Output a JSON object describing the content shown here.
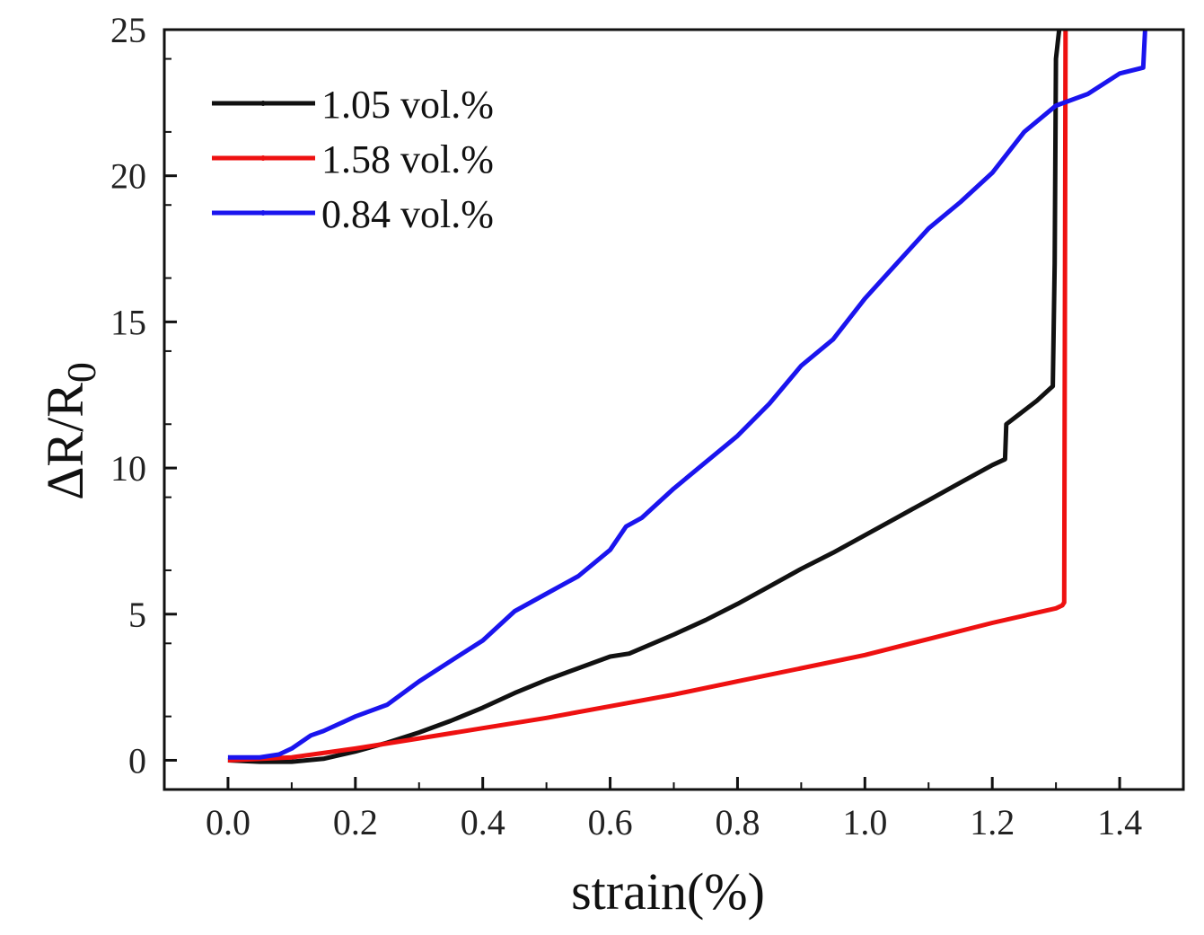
{
  "chart_data": {
    "type": "line",
    "title": "",
    "xlabel": "strain(%)",
    "ylabel": {
      "main": "ΔR/R",
      "subscript": "0"
    },
    "xlim": [
      -0.1,
      1.5
    ],
    "ylim": [
      -1,
      25
    ],
    "xticks": [
      0.0,
      0.2,
      0.4,
      0.6,
      0.8,
      1.0,
      1.2,
      1.4
    ],
    "xtick_labels": [
      "0.0",
      "0.2",
      "0.4",
      "0.6",
      "0.8",
      "1.0",
      "1.2",
      "1.4"
    ],
    "yticks": [
      0,
      5,
      10,
      15,
      20,
      25
    ],
    "ytick_labels": [
      "0",
      "5",
      "10",
      "15",
      "20",
      "25"
    ],
    "grid": false,
    "legend": {
      "position": "top-left"
    },
    "series": [
      {
        "name": "1.05 vol.%",
        "color": "#111111",
        "points": [
          [
            0.0,
            0.0
          ],
          [
            0.05,
            -0.05
          ],
          [
            0.1,
            -0.05
          ],
          [
            0.15,
            0.05
          ],
          [
            0.2,
            0.3
          ],
          [
            0.25,
            0.6
          ],
          [
            0.3,
            0.95
          ],
          [
            0.35,
            1.35
          ],
          [
            0.4,
            1.8
          ],
          [
            0.45,
            2.3
          ],
          [
            0.5,
            2.75
          ],
          [
            0.55,
            3.15
          ],
          [
            0.6,
            3.55
          ],
          [
            0.63,
            3.65
          ],
          [
            0.7,
            4.3
          ],
          [
            0.75,
            4.8
          ],
          [
            0.8,
            5.35
          ],
          [
            0.85,
            5.95
          ],
          [
            0.9,
            6.55
          ],
          [
            0.95,
            7.1
          ],
          [
            1.0,
            7.7
          ],
          [
            1.05,
            8.3
          ],
          [
            1.1,
            8.9
          ],
          [
            1.15,
            9.5
          ],
          [
            1.2,
            10.1
          ],
          [
            1.22,
            10.3
          ],
          [
            1.222,
            11.5
          ],
          [
            1.24,
            11.8
          ],
          [
            1.27,
            12.3
          ],
          [
            1.29,
            12.7
          ],
          [
            1.295,
            12.8
          ],
          [
            1.298,
            17.0
          ],
          [
            1.3,
            24.0
          ],
          [
            1.305,
            25.0
          ]
        ]
      },
      {
        "name": "1.58 vol.%",
        "color": "#ee1111",
        "points": [
          [
            0.0,
            0.0
          ],
          [
            0.1,
            0.1
          ],
          [
            0.2,
            0.4
          ],
          [
            0.3,
            0.75
          ],
          [
            0.4,
            1.1
          ],
          [
            0.5,
            1.45
          ],
          [
            0.6,
            1.85
          ],
          [
            0.7,
            2.25
          ],
          [
            0.8,
            2.7
          ],
          [
            0.9,
            3.15
          ],
          [
            1.0,
            3.6
          ],
          [
            1.1,
            4.15
          ],
          [
            1.2,
            4.7
          ],
          [
            1.3,
            5.2
          ],
          [
            1.31,
            5.3
          ],
          [
            1.313,
            5.4
          ],
          [
            1.315,
            25.0
          ]
        ]
      },
      {
        "name": "0.84 vol.%",
        "color": "#1a14ee",
        "points": [
          [
            0.0,
            0.1
          ],
          [
            0.05,
            0.1
          ],
          [
            0.08,
            0.2
          ],
          [
            0.1,
            0.4
          ],
          [
            0.13,
            0.85
          ],
          [
            0.15,
            1.0
          ],
          [
            0.2,
            1.5
          ],
          [
            0.25,
            1.9
          ],
          [
            0.3,
            2.7
          ],
          [
            0.35,
            3.4
          ],
          [
            0.4,
            4.1
          ],
          [
            0.45,
            5.1
          ],
          [
            0.5,
            5.7
          ],
          [
            0.55,
            6.3
          ],
          [
            0.6,
            7.2
          ],
          [
            0.625,
            8.0
          ],
          [
            0.65,
            8.3
          ],
          [
            0.7,
            9.3
          ],
          [
            0.75,
            10.2
          ],
          [
            0.8,
            11.1
          ],
          [
            0.85,
            12.2
          ],
          [
            0.9,
            13.5
          ],
          [
            0.95,
            14.4
          ],
          [
            1.0,
            15.8
          ],
          [
            1.05,
            17.0
          ],
          [
            1.1,
            18.2
          ],
          [
            1.15,
            19.1
          ],
          [
            1.2,
            20.1
          ],
          [
            1.25,
            21.5
          ],
          [
            1.3,
            22.4
          ],
          [
            1.35,
            22.8
          ],
          [
            1.4,
            23.5
          ],
          [
            1.437,
            23.7
          ],
          [
            1.44,
            25.0
          ]
        ]
      }
    ]
  }
}
